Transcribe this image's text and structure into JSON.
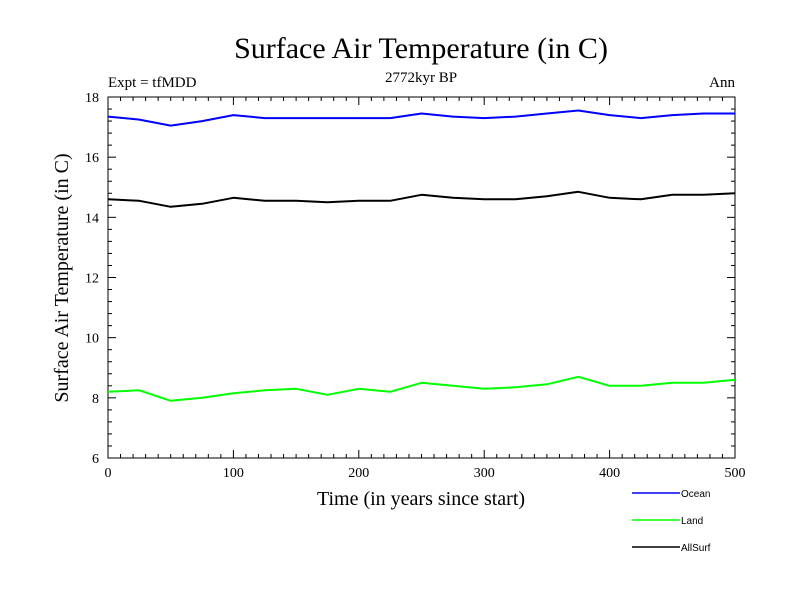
{
  "chart_data": {
    "type": "line",
    "title": "Surface Air Temperature (in C)",
    "subtitle": "2772kyr BP",
    "left_label": "Expt = tfMDD",
    "right_label": "Ann",
    "xlabel": "Time (in years since start)",
    "ylabel": "Surface Air Temperature (in C)",
    "xlim": [
      0,
      500
    ],
    "ylim": [
      6,
      18
    ],
    "xticks": [
      0,
      100,
      200,
      300,
      400,
      500
    ],
    "yticks": [
      6,
      8,
      10,
      12,
      14,
      16,
      18
    ],
    "legend_position": "bottom-right",
    "x": [
      0,
      25,
      50,
      75,
      100,
      125,
      150,
      175,
      200,
      225,
      250,
      275,
      300,
      325,
      350,
      375,
      400,
      425,
      450,
      475,
      500
    ],
    "series": [
      {
        "name": "Ocean",
        "color": "#0000ff",
        "values": [
          17.35,
          17.25,
          17.05,
          17.2,
          17.4,
          17.3,
          17.3,
          17.3,
          17.3,
          17.3,
          17.45,
          17.35,
          17.3,
          17.35,
          17.45,
          17.55,
          17.4,
          17.3,
          17.4,
          17.45,
          17.45
        ]
      },
      {
        "name": "Land",
        "color": "#00ff00",
        "values": [
          8.2,
          8.25,
          7.9,
          8.0,
          8.15,
          8.25,
          8.3,
          8.1,
          8.3,
          8.2,
          8.5,
          8.4,
          8.3,
          8.35,
          8.45,
          8.7,
          8.4,
          8.4,
          8.5,
          8.5,
          8.6
        ]
      },
      {
        "name": "AllSurf",
        "color": "#000000",
        "values": [
          14.6,
          14.55,
          14.35,
          14.45,
          14.65,
          14.55,
          14.55,
          14.5,
          14.55,
          14.55,
          14.75,
          14.65,
          14.6,
          14.6,
          14.7,
          14.85,
          14.65,
          14.6,
          14.75,
          14.75,
          14.8
        ]
      }
    ]
  }
}
